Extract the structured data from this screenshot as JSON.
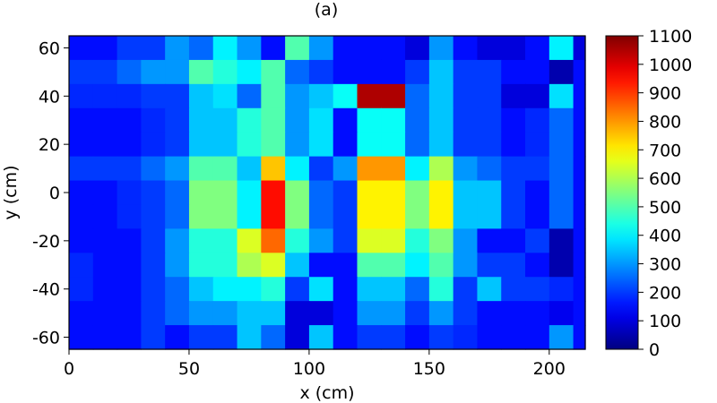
{
  "chart_data": {
    "type": "heatmap",
    "title": "(a)",
    "xlabel": "x (cm)",
    "ylabel": "y (cm)",
    "xlim": [
      0,
      215
    ],
    "ylim": [
      -65,
      65
    ],
    "xticks": [
      0,
      50,
      100,
      150,
      200
    ],
    "yticks": [
      60,
      40,
      20,
      0,
      -20,
      -40,
      -60
    ],
    "colorbar": {
      "min": 0,
      "max": 1100,
      "ticks": [
        1100,
        1000,
        900,
        800,
        700,
        600,
        500,
        400,
        300,
        200,
        100,
        0
      ],
      "colormap": "jet"
    },
    "grid": {
      "x_centers": [
        5,
        15,
        25,
        35,
        45,
        55,
        65,
        75,
        85,
        95,
        105,
        115,
        125,
        135,
        145,
        155,
        165,
        175,
        185,
        195,
        205,
        215
      ],
      "y_centers": [
        60,
        50,
        40,
        30,
        20,
        10,
        0,
        -10,
        -20,
        -30,
        -40,
        -50,
        -60
      ],
      "values": [
        [
          150,
          150,
          200,
          200,
          300,
          250,
          400,
          300,
          150,
          500,
          300,
          150,
          150,
          150,
          100,
          300,
          150,
          100,
          100,
          150,
          400,
          100
        ],
        [
          200,
          200,
          250,
          300,
          300,
          500,
          450,
          400,
          500,
          250,
          200,
          150,
          150,
          150,
          200,
          350,
          200,
          200,
          150,
          150,
          50,
          150
        ],
        [
          180,
          180,
          180,
          200,
          200,
          350,
          380,
          250,
          500,
          300,
          350,
          420,
          1050,
          1050,
          250,
          350,
          200,
          200,
          100,
          100,
          380,
          150
        ],
        [
          150,
          150,
          150,
          180,
          200,
          350,
          350,
          450,
          500,
          300,
          380,
          150,
          420,
          420,
          250,
          350,
          200,
          200,
          150,
          180,
          250,
          150
        ],
        [
          150,
          150,
          150,
          180,
          200,
          350,
          350,
          450,
          500,
          300,
          380,
          150,
          420,
          420,
          250,
          350,
          200,
          200,
          150,
          180,
          250,
          150
        ],
        [
          200,
          200,
          200,
          250,
          300,
          500,
          500,
          350,
          750,
          400,
          200,
          300,
          800,
          800,
          400,
          600,
          300,
          250,
          200,
          200,
          250,
          150
        ],
        [
          150,
          150,
          180,
          200,
          250,
          550,
          550,
          400,
          950,
          550,
          250,
          200,
          700,
          700,
          550,
          700,
          350,
          350,
          200,
          150,
          250,
          150
        ],
        [
          150,
          150,
          180,
          200,
          250,
          550,
          550,
          400,
          950,
          550,
          250,
          200,
          700,
          700,
          550,
          700,
          350,
          350,
          200,
          150,
          250,
          150
        ],
        [
          150,
          150,
          150,
          200,
          300,
          450,
          450,
          650,
          850,
          450,
          300,
          200,
          650,
          650,
          450,
          550,
          300,
          150,
          150,
          200,
          50,
          150
        ],
        [
          180,
          150,
          150,
          200,
          300,
          450,
          450,
          600,
          650,
          350,
          150,
          150,
          500,
          500,
          400,
          500,
          300,
          200,
          200,
          150,
          50,
          150
        ],
        [
          180,
          150,
          150,
          200,
          250,
          350,
          400,
          400,
          450,
          200,
          380,
          150,
          350,
          350,
          250,
          450,
          200,
          350,
          200,
          200,
          180,
          150
        ],
        [
          150,
          150,
          150,
          200,
          250,
          300,
          300,
          350,
          350,
          100,
          100,
          150,
          300,
          300,
          200,
          300,
          200,
          150,
          150,
          150,
          120,
          150
        ],
        [
          150,
          150,
          150,
          200,
          150,
          200,
          200,
          350,
          250,
          100,
          350,
          150,
          200,
          200,
          150,
          200,
          180,
          150,
          150,
          150,
          300,
          150
        ]
      ]
    }
  }
}
